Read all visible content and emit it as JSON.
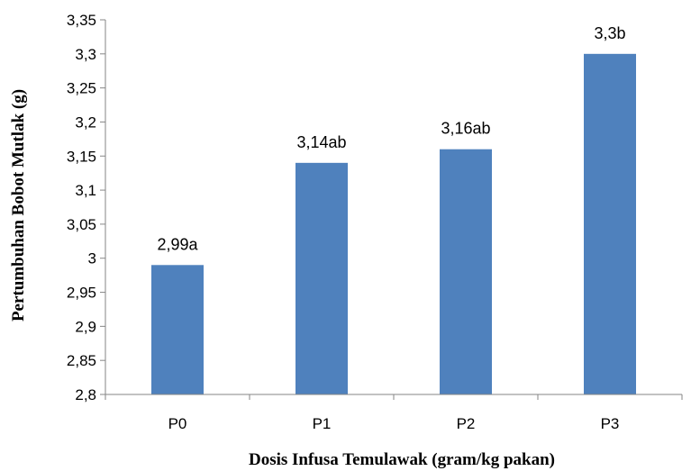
{
  "chart_data": {
    "type": "bar",
    "categories": [
      "P0",
      "P1",
      "P2",
      "P3"
    ],
    "values": [
      2.99,
      3.14,
      3.16,
      3.3
    ],
    "data_labels": [
      "2,99a",
      "3,14ab",
      "3,16ab",
      "3,3b"
    ],
    "xlabel": "Dosis Infusa Temulawak (gram/kg pakan)",
    "ylabel": "Pertumbuhan Bobot Mutlak (g)",
    "ylim": [
      2.8,
      3.35
    ],
    "yticks": [
      2.8,
      2.85,
      2.9,
      2.95,
      3,
      3.05,
      3.1,
      3.15,
      3.2,
      3.25,
      3.3,
      3.35
    ],
    "ytick_labels": [
      "2,8",
      "2,85",
      "2,9",
      "2,95",
      "3",
      "3,05",
      "3,1",
      "3,15",
      "3,2",
      "3,25",
      "3,3",
      "3,35"
    ],
    "grid": false,
    "legend": "none",
    "bar_color": "#4f81bd",
    "axis_color": "#868686"
  }
}
